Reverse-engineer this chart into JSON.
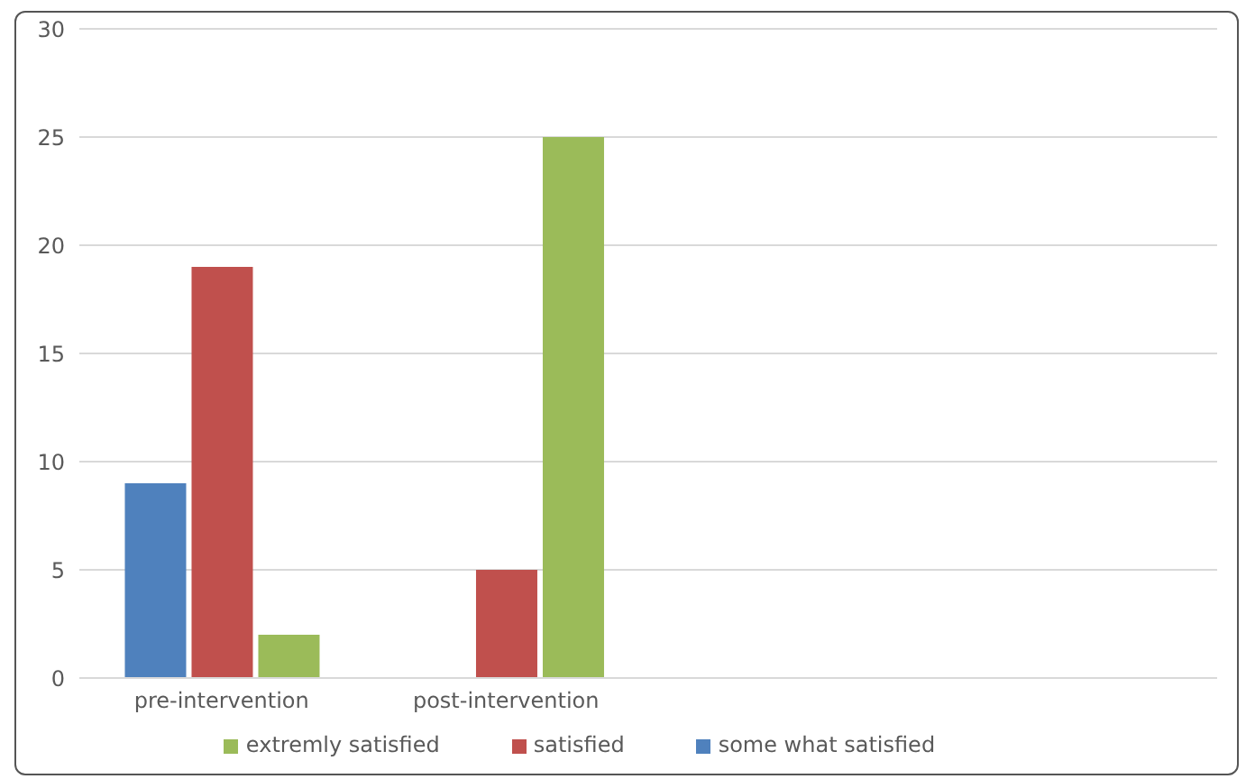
{
  "chart_data": {
    "type": "bar",
    "categories": [
      "pre-intervention",
      "post-intervention",
      null,
      null
    ],
    "series": [
      {
        "name": "some what satisfied",
        "color": "#4f81bd",
        "values": [
          9,
          null,
          null,
          null
        ]
      },
      {
        "name": "satisfied",
        "color": "#c0504d",
        "values": [
          19,
          5,
          null,
          null
        ]
      },
      {
        "name": "extremly satisfied",
        "color": "#9bbb59",
        "values": [
          2,
          25,
          null,
          null
        ]
      }
    ],
    "ylim": [
      0,
      30
    ],
    "yticks": [
      0,
      5,
      10,
      15,
      20,
      25,
      30
    ],
    "grid": "y",
    "legend": "bottom"
  }
}
